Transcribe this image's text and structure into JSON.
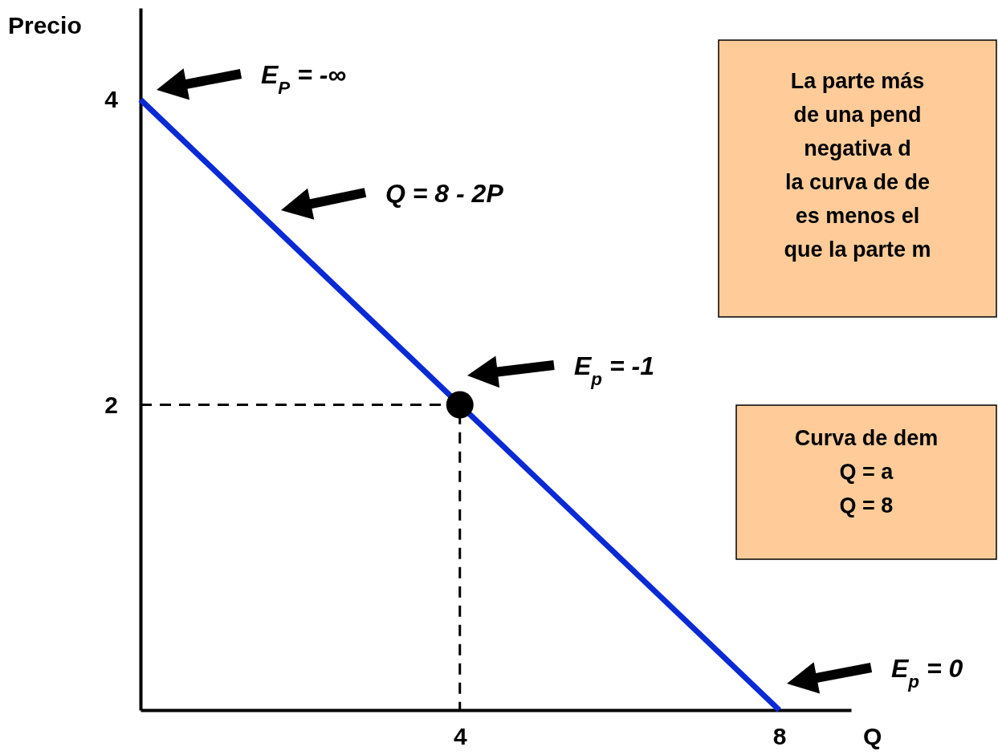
{
  "chart_data": {
    "type": "line",
    "xlabel": "Q",
    "ylabel": "Precio",
    "xlim": [
      0,
      8.9
    ],
    "ylim": [
      0,
      4.6
    ],
    "xticks": [
      4,
      8
    ],
    "yticks": [
      2,
      4
    ],
    "grid": false,
    "series": [
      {
        "color": "#0a2ad6",
        "line_style": "solid",
        "x": [
          0,
          8
        ],
        "values": [
          4,
          0
        ]
      },
      {
        "color": "#000000",
        "line_style": "dashed",
        "x": [
          0,
          4,
          4
        ],
        "values": [
          2,
          2,
          0
        ]
      },
      {
        "type": "scatter",
        "color": "#000000",
        "marker": "circle",
        "x": [
          4
        ],
        "values": [
          2
        ]
      }
    ],
    "annotations": [
      "E$_{P}$ = -∞",
      "Q = 8 - 2P",
      "E$_{p}$ = -1",
      "E$_{p}$ = 0",
      "La parte más\nde una pend\nnegativa d\nla curva de de\nes menos el\nque la parte m",
      "Curva de dem\nQ = a\nQ = 8"
    ]
  }
}
